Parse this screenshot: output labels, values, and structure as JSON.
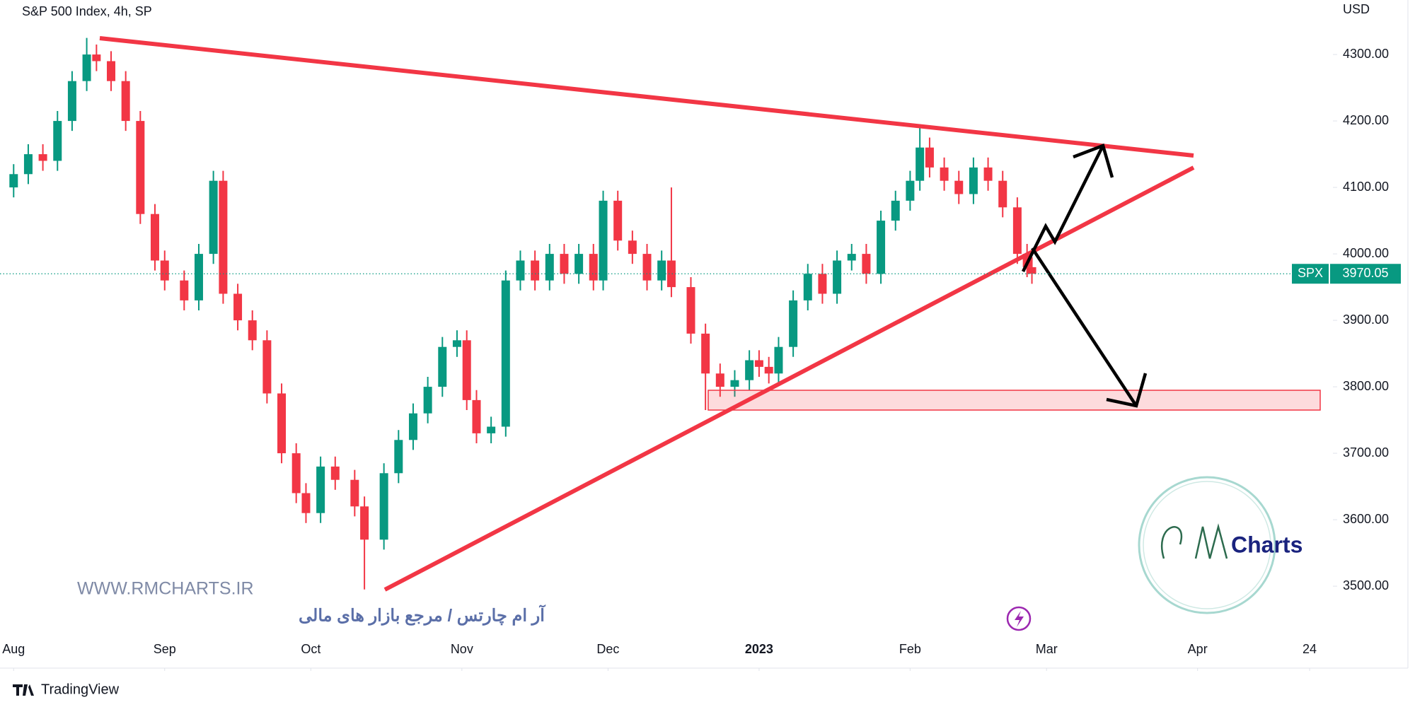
{
  "chart_data": {
    "type": "candlestick",
    "title": "S&P 500 Index, 4h, SP",
    "currency": "USD",
    "last_label": "SPX",
    "up_color": "#089981",
    "down_color": "#f23645",
    "x": [
      0,
      3,
      6,
      9,
      12,
      15,
      17,
      20,
      23,
      26,
      29,
      31,
      35,
      38,
      41,
      43,
      46,
      49,
      52,
      55,
      58,
      60,
      63,
      66,
      70,
      72,
      76,
      79,
      82,
      85,
      88,
      91,
      93,
      95,
      98,
      101,
      104,
      107,
      110,
      113,
      116,
      119,
      121,
      124,
      127,
      130,
      133,
      135,
      139,
      142,
      145,
      148,
      151,
      153,
      155,
      157,
      160,
      163,
      166,
      169,
      172,
      175,
      178,
      181,
      184,
      186,
      188,
      191,
      194,
      197,
      200,
      203,
      206,
      208,
      209
    ],
    "open": [
      4100,
      4120,
      4150,
      4140,
      4200,
      4260,
      4300,
      4290,
      4260,
      4200,
      4060,
      3990,
      3960,
      3930,
      4000,
      4110,
      3940,
      3900,
      3870,
      3790,
      3700,
      3640,
      3610,
      3680,
      3660,
      3620,
      3570,
      3670,
      3720,
      3760,
      3800,
      3860,
      3870,
      3780,
      3730,
      3740,
      3960,
      3990,
      3960,
      4000,
      3970,
      4000,
      3960,
      4080,
      4020,
      4000,
      3960,
      3990,
      3950,
      3880,
      3820,
      3800,
      3810,
      3840,
      3830,
      3820,
      3860,
      3930,
      3970,
      3940,
      3990,
      4000,
      3970,
      4050,
      4080,
      4110,
      4160,
      4130,
      4110,
      4090,
      4130,
      4110,
      4070,
      4000,
      3980
    ],
    "high": [
      4135,
      4165,
      4165,
      4215,
      4275,
      4325,
      4315,
      4305,
      4275,
      4215,
      4075,
      4005,
      3975,
      4015,
      4125,
      4125,
      3955,
      3915,
      3885,
      3805,
      3715,
      3655,
      3695,
      3695,
      3675,
      3635,
      3685,
      3735,
      3775,
      3815,
      3875,
      3885,
      3885,
      3795,
      3755,
      3975,
      4005,
      4005,
      4015,
      4015,
      4015,
      4015,
      4095,
      4095,
      4035,
      4015,
      4005,
      4100,
      3965,
      3895,
      3835,
      3825,
      3855,
      3855,
      3845,
      3875,
      3945,
      3985,
      3985,
      4005,
      4015,
      4015,
      4065,
      4095,
      4125,
      4195,
      4175,
      4145,
      4125,
      4145,
      4145,
      4125,
      4085,
      4015,
      3995
    ],
    "low": [
      4085,
      4105,
      4125,
      4125,
      4185,
      4245,
      4275,
      4245,
      4185,
      4045,
      3975,
      3945,
      3915,
      3915,
      3985,
      3925,
      3885,
      3855,
      3775,
      3685,
      3625,
      3595,
      3595,
      3645,
      3605,
      3495,
      3555,
      3655,
      3705,
      3745,
      3785,
      3845,
      3765,
      3715,
      3715,
      3725,
      3945,
      3945,
      3945,
      3955,
      3955,
      3945,
      3945,
      4005,
      3985,
      3945,
      3945,
      3935,
      3865,
      3765,
      3785,
      3785,
      3795,
      3815,
      3805,
      3805,
      3845,
      3915,
      3925,
      3925,
      3975,
      3955,
      3955,
      4035,
      4065,
      4095,
      4115,
      4095,
      4075,
      4075,
      4095,
      4055,
      3985,
      3965,
      3955
    ],
    "close": [
      4120,
      4150,
      4140,
      4200,
      4260,
      4300,
      4290,
      4260,
      4200,
      4060,
      3990,
      3960,
      3930,
      4000,
      4110,
      3940,
      3900,
      3870,
      3790,
      3700,
      3640,
      3610,
      3680,
      3660,
      3620,
      3570,
      3670,
      3720,
      3760,
      3800,
      3860,
      3870,
      3780,
      3730,
      3740,
      3960,
      3990,
      3960,
      4000,
      3970,
      4000,
      3960,
      4080,
      4020,
      4000,
      3960,
      3990,
      3950,
      3880,
      3820,
      3800,
      3810,
      3840,
      3830,
      3820,
      3860,
      3930,
      3970,
      3940,
      3990,
      4000,
      3970,
      4050,
      4080,
      4110,
      4160,
      4130,
      4110,
      4090,
      4130,
      4110,
      4070,
      4000,
      3980,
      3970.05
    ],
    "xlim": [
      -2.8,
      270.2
    ],
    "ylim": [
      3415,
      4382
    ],
    "xticks": [
      {
        "value": 0,
        "label": "Aug"
      },
      {
        "value": 31,
        "label": "Sep"
      },
      {
        "value": 61,
        "label": "Oct"
      },
      {
        "value": 92,
        "label": "Nov"
      },
      {
        "value": 122,
        "label": "Dec"
      },
      {
        "value": 153,
        "label": "2023"
      },
      {
        "value": 184,
        "label": "Feb"
      },
      {
        "value": 212,
        "label": "Mar"
      },
      {
        "value": 243,
        "label": "Apr"
      },
      {
        "value": 266,
        "label": "24"
      }
    ],
    "yticks": [
      {
        "value": 3500,
        "label": "3500.00"
      },
      {
        "value": 3600,
        "label": "3600.00"
      },
      {
        "value": 3700,
        "label": "3700.00"
      },
      {
        "value": 3800,
        "label": "3800.00"
      },
      {
        "value": 3900,
        "label": "3900.00"
      },
      {
        "value": 4000,
        "label": "4000.00"
      },
      {
        "value": 4100,
        "label": "4100.00"
      },
      {
        "value": 4200,
        "label": "4200.00"
      },
      {
        "value": 4300,
        "label": "4300.00"
      }
    ]
  },
  "branding": {
    "website": "WWW.RMCHARTS.IR",
    "tagline": "آر ام چارتس / مرجع بازار های مالی",
    "logo_text": "Charts",
    "platform": "TradingView"
  }
}
